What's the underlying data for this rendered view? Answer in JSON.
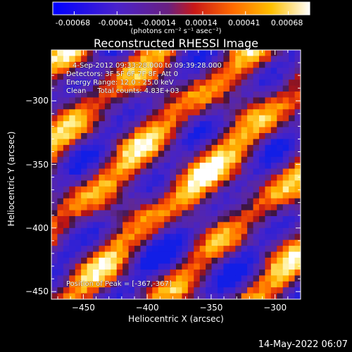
{
  "colorbar": {
    "ticks": [
      "-0.00068",
      "-0.00041",
      "-0.00014",
      "0.00014",
      "0.00041",
      "0.00068"
    ],
    "units": "(photons cm⁻² s⁻¹ asec⁻²)",
    "range": [
      -0.00068,
      0.00068
    ]
  },
  "chart_data": {
    "type": "heatmap",
    "title": "Reconstructed RHESSI Image",
    "xlabel": "Heliocentric X (arcsec)",
    "ylabel": "Heliocentric Y (arcsec)",
    "xlim": [
      -475,
      -280
    ],
    "ylim": [
      -456,
      -260
    ],
    "xticks": [
      -450,
      -400,
      -350,
      -300
    ],
    "yticks": [
      -300,
      -350,
      -400,
      -450
    ],
    "xtick_labels": [
      "−450",
      "−400",
      "−350",
      "−300"
    ],
    "ytick_labels": [
      "−300",
      "−350",
      "−400",
      "−450"
    ],
    "colormap": "blue-purple-red-yellow-white",
    "peak_position": [
      -367,
      -367
    ],
    "annotations": {
      "time": "4-Sep-2012 09:33:28.000 to 09:39:28.000",
      "detectors": "Detectors: 3F 5F 6F 7F 8F, Att 0",
      "energy": "Energy Range: 12.0 - 25.0 keV",
      "clean": "Clean     Total counts: 4.83E+03",
      "peak": "Position of Peak = [-367,-367]"
    }
  },
  "footer": {
    "timestamp": "14-May-2022 06:07"
  }
}
